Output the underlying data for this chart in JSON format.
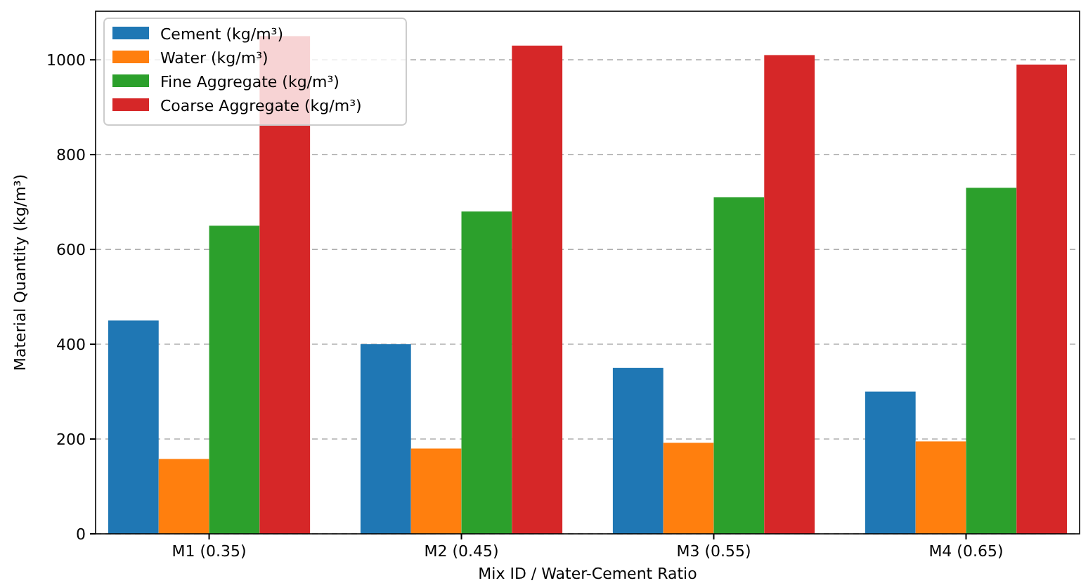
{
  "chart_data": {
    "type": "bar",
    "xlabel": "Mix ID / Water-Cement Ratio",
    "ylabel": "Material Quantity (kg/m³)",
    "categories": [
      "M1 (0.35)",
      "M2 (0.45)",
      "M3 (0.55)",
      "M4 (0.65)"
    ],
    "series": [
      {
        "name": "Cement (kg/m³)",
        "color": "#1f77b4",
        "values": [
          450,
          400,
          350,
          300
        ]
      },
      {
        "name": "Water (kg/m³)",
        "color": "#ff7f0e",
        "values": [
          158,
          180,
          192,
          195
        ]
      },
      {
        "name": "Fine Aggregate (kg/m³)",
        "color": "#2ca02c",
        "values": [
          650,
          680,
          710,
          730
        ]
      },
      {
        "name": "Coarse Aggregate (kg/m³)",
        "color": "#d62728",
        "values": [
          1050,
          1030,
          1010,
          990
        ]
      }
    ],
    "ylim": [
      0,
      1102.5
    ],
    "yticks": [
      0,
      200,
      400,
      600,
      800,
      1000
    ],
    "grid": "y",
    "legend": "top left"
  }
}
